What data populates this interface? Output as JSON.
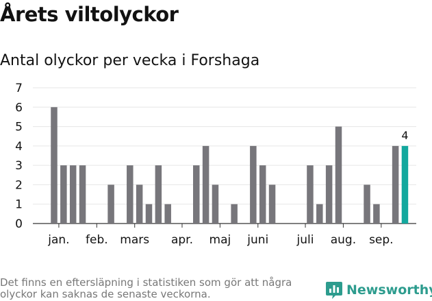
{
  "title": "Årets viltolyckor",
  "subtitle": "Antal olyckor per vecka i Forshaga",
  "footnote": "Det finns en eftersläpning i statistiken som gör att några olyckor kan saknas de senaste veckorna.",
  "brand": "Newsworthy",
  "colors": {
    "bar": "#77767b",
    "highlight": "#13a89e",
    "grid": "#e6e6e6",
    "text": "#121212",
    "brand": "#2d9c8e"
  },
  "chart_data": {
    "type": "bar",
    "title": "Antal olyckor per vecka i Forshaga",
    "xlabel": "",
    "ylabel": "",
    "ylim": [
      0,
      7
    ],
    "yticks": [
      0,
      1,
      2,
      3,
      4,
      5,
      6,
      7
    ],
    "grid": true,
    "weeks": [
      1,
      2,
      3,
      4,
      5,
      6,
      7,
      8,
      9,
      10,
      11,
      12,
      13,
      14,
      15,
      16,
      17,
      18,
      19,
      20,
      21,
      22,
      23,
      24,
      25,
      26,
      27,
      28,
      29,
      30,
      31,
      32,
      33,
      34,
      35,
      36,
      37,
      38
    ],
    "values": [
      6,
      3,
      3,
      3,
      0,
      0,
      2,
      0,
      3,
      2,
      1,
      3,
      1,
      0,
      0,
      3,
      4,
      2,
      0,
      1,
      0,
      4,
      3,
      2,
      0,
      0,
      0,
      3,
      1,
      3,
      5,
      0,
      0,
      2,
      1,
      0,
      4,
      4
    ],
    "highlight_last": true,
    "annotation": {
      "week": 38,
      "text": "4"
    },
    "month_labels": [
      {
        "label": "jan.",
        "week": 1.5
      },
      {
        "label": "feb.",
        "week": 5.5
      },
      {
        "label": "mars",
        "week": 9.5
      },
      {
        "label": "apr.",
        "week": 14.5
      },
      {
        "label": "maj",
        "week": 18.5
      },
      {
        "label": "juni",
        "week": 22.5
      },
      {
        "label": "juli",
        "week": 27.5
      },
      {
        "label": "aug.",
        "week": 31.5
      },
      {
        "label": "sep.",
        "week": 35.5
      }
    ]
  }
}
